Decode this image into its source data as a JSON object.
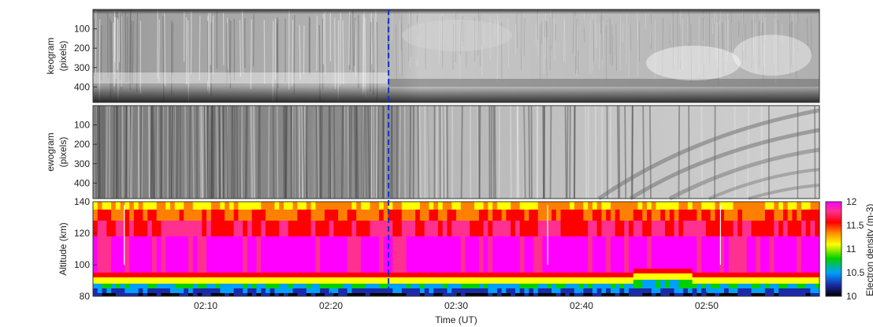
{
  "chart_data": [
    {
      "type": "heatmap",
      "panel": "keogram",
      "ylabel": [
        "keogram",
        "(pixels)"
      ],
      "yticks": [
        100,
        200,
        300,
        400
      ],
      "ylim": [
        0,
        480
      ],
      "y_inverted": true,
      "colormap": "grayscale"
    },
    {
      "type": "heatmap",
      "panel": "ewogram",
      "ylabel": [
        "ewogram",
        "(pixels)"
      ],
      "yticks": [
        100,
        200,
        300,
        400
      ],
      "ylim": [
        0,
        480
      ],
      "y_inverted": true,
      "colormap": "grayscale"
    },
    {
      "type": "heatmap",
      "panel": "electron-density",
      "ylabel": "Altitude (km)",
      "yticks": [
        80,
        100,
        120,
        140
      ],
      "ylim": [
        80,
        140
      ],
      "colorbar": {
        "label": "Electron density (m-3)",
        "ticks": [
          "12",
          "11.5",
          "11",
          "10.5",
          "10"
        ],
        "range": [
          10,
          12
        ],
        "colors": [
          "#000000",
          "#1a2aa8",
          "#00a0ff",
          "#00d000",
          "#ffff00",
          "#ff8000",
          "#ff0000",
          "#ff3090",
          "#ff00ff"
        ]
      }
    }
  ],
  "xaxis": {
    "label": "Time (UT)",
    "ticks": [
      "02:10",
      "02:20",
      "02:30",
      "02:40",
      "02:50"
    ],
    "tick_minutes": [
      10,
      20,
      30,
      40,
      50
    ],
    "range_minutes": [
      1.0,
      59.0
    ]
  },
  "event_line": {
    "minute": 24.6,
    "color": "#1030d0"
  }
}
